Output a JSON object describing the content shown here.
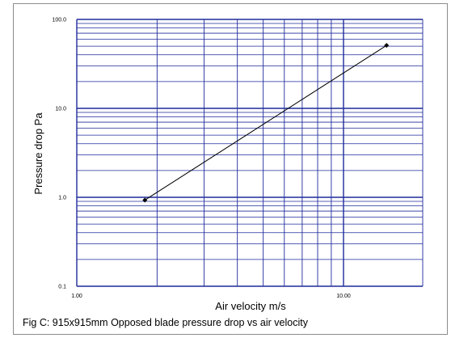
{
  "chart_data": {
    "type": "line",
    "xscale": "log",
    "yscale": "log",
    "xlim": [
      1.0,
      20.0
    ],
    "ylim": [
      0.1,
      100.0
    ],
    "grid": true,
    "xlabel": "Air velocity m/s",
    "ylabel": "Pressure drop Pa",
    "x_tick_labels": [
      "1.00",
      "10.00"
    ],
    "y_tick_labels": [
      "0.1",
      "1.0",
      "10.0",
      "100.0"
    ],
    "series": [
      {
        "x": [
          1.8,
          14.5
        ],
        "y": [
          0.93,
          51.0
        ],
        "marker": "diamond",
        "color": "#000000"
      }
    ],
    "grid_color": "#1f2a9c",
    "caption": "Fig C: 915x915mm Opposed blade pressure drop vs air velocity"
  }
}
